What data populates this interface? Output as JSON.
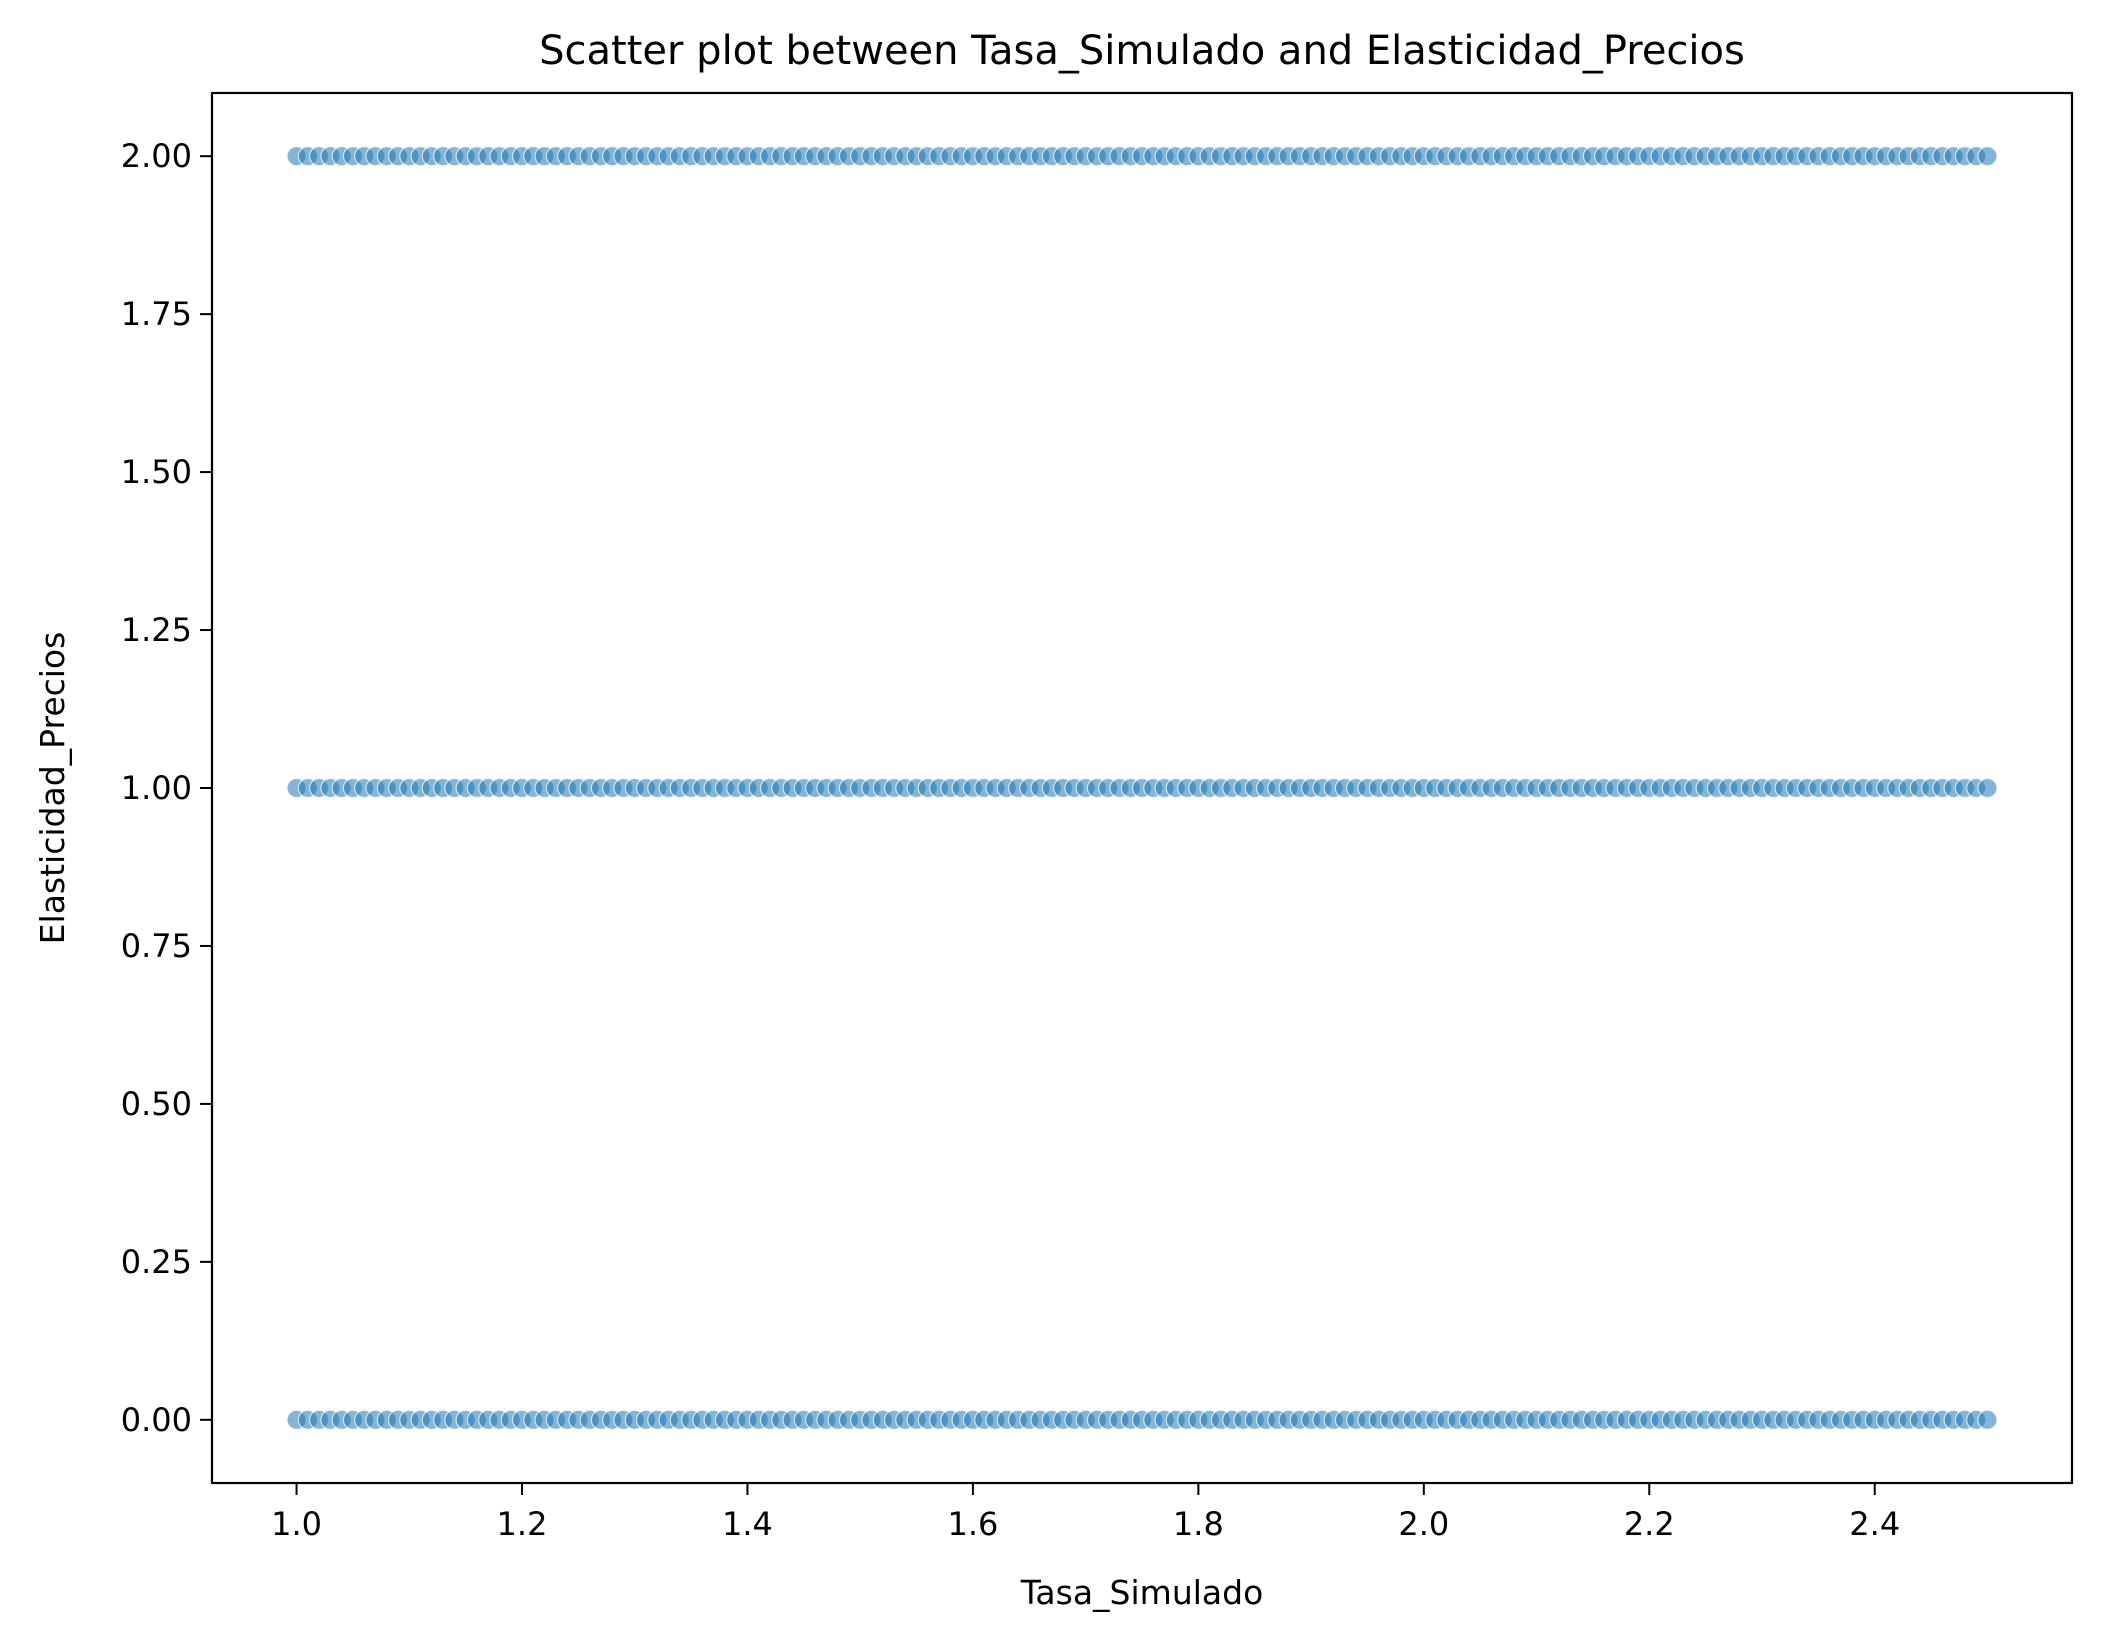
{
  "chart_data": {
    "type": "scatter",
    "title": "Scatter plot between Tasa_Simulado and Elasticidad_Precios",
    "xlabel": "Tasa_Simulado",
    "ylabel": "Elasticidad_Precios",
    "xlim": [
      0.925,
      2.575
    ],
    "ylim": [
      -0.1,
      2.1
    ],
    "x_ticks": [
      1.0,
      1.2,
      1.4,
      1.6,
      1.8,
      2.0,
      2.2,
      2.4
    ],
    "x_tick_labels": [
      "1.0",
      "1.2",
      "1.4",
      "1.6",
      "1.8",
      "2.0",
      "2.2",
      "2.4"
    ],
    "y_ticks": [
      0,
      0.25,
      0.5,
      0.75,
      1.0,
      1.25,
      1.5,
      1.75,
      2.0
    ],
    "y_tick_labels": [
      "0.00",
      "0.25",
      "0.50",
      "0.75",
      "1.00",
      "1.25",
      "1.50",
      "1.75",
      "2.00"
    ],
    "grid": false,
    "point_color": "#1f77b4",
    "series": [
      {
        "y_levels": [
          0,
          1,
          2
        ],
        "x_range": [
          1.0,
          2.5
        ],
        "x_step": 0.01
      }
    ]
  }
}
